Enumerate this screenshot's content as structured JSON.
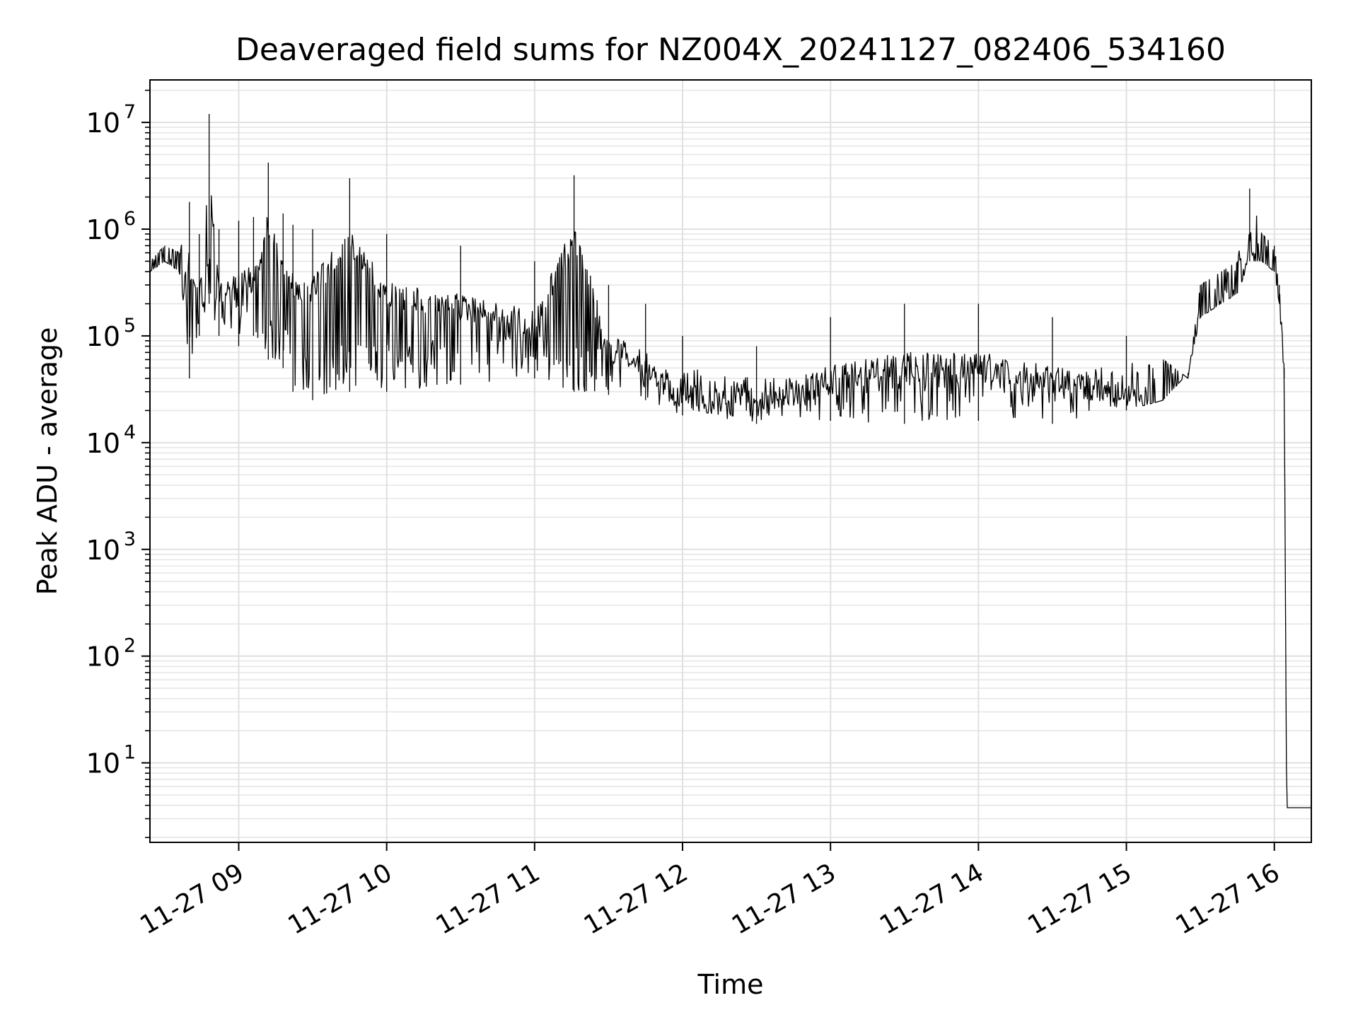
{
  "chart_data": {
    "type": "line",
    "title": "Deaveraged field sums for NZ004X_20241127_082406_534160",
    "xlabel": "Time",
    "ylabel": "Peak ADU - average",
    "yscale": "log",
    "ylim": [
      1.8,
      25000000
    ],
    "xlim": [
      "2024-11-27 08:24",
      "2024-11-27 16:15"
    ],
    "grid": true,
    "line_color": "#000000",
    "x_ticks": [
      {
        "value": "2024-11-27 09:00",
        "label": "11-27 09"
      },
      {
        "value": "2024-11-27 10:00",
        "label": "11-27 10"
      },
      {
        "value": "2024-11-27 11:00",
        "label": "11-27 11"
      },
      {
        "value": "2024-11-27 12:00",
        "label": "11-27 12"
      },
      {
        "value": "2024-11-27 13:00",
        "label": "11-27 13"
      },
      {
        "value": "2024-11-27 14:00",
        "label": "11-27 14"
      },
      {
        "value": "2024-11-27 15:00",
        "label": "11-27 15"
      },
      {
        "value": "2024-11-27 16:00",
        "label": "11-27 16"
      }
    ],
    "y_ticks": [
      {
        "value": 10,
        "base": "10",
        "exp": "1"
      },
      {
        "value": 100,
        "base": "10",
        "exp": "2"
      },
      {
        "value": 1000,
        "base": "10",
        "exp": "3"
      },
      {
        "value": 10000,
        "base": "10",
        "exp": "4"
      },
      {
        "value": 100000,
        "base": "10",
        "exp": "5"
      },
      {
        "value": 1000000,
        "base": "10",
        "exp": "6"
      },
      {
        "value": 10000000,
        "base": "10",
        "exp": "7"
      }
    ],
    "series": [
      {
        "x": [
          "2024-11-27 08:24",
          "2024-11-27 08:30",
          "2024-11-27 08:36",
          "2024-11-27 08:40",
          "2024-11-27 08:44",
          "2024-11-27 08:48",
          "2024-11-27 08:52",
          "2024-11-27 09:00",
          "2024-11-27 09:06",
          "2024-11-27 09:12",
          "2024-11-27 09:18",
          "2024-11-27 09:22",
          "2024-11-27 09:30",
          "2024-11-27 09:45",
          "2024-11-27 10:00",
          "2024-11-27 10:30",
          "2024-11-27 11:00",
          "2024-11-27 11:16",
          "2024-11-27 11:30",
          "2024-11-27 11:45",
          "2024-11-27 12:00",
          "2024-11-27 12:30",
          "2024-11-27 13:00",
          "2024-11-27 13:30",
          "2024-11-27 14:00",
          "2024-11-27 14:30",
          "2024-11-27 15:00",
          "2024-11-27 15:15",
          "2024-11-27 15:25",
          "2024-11-27 15:30",
          "2024-11-27 15:45",
          "2024-11-27 15:50",
          "2024-11-27 15:55",
          "2024-11-27 16:00",
          "2024-11-27 16:02",
          "2024-11-27 16:04",
          "2024-11-27 16:05",
          "2024-11-27 16:15"
        ],
        "y": [
          500000,
          700000,
          600000,
          1800000,
          900000,
          12000000,
          1000000,
          1200000,
          1300000,
          4200000,
          1400000,
          1100000,
          1000000,
          3000000,
          900000,
          700000,
          500000,
          3200000,
          300000,
          200000,
          100000,
          80000,
          150000,
          200000,
          200000,
          150000,
          100000,
          60000,
          40000,
          300000,
          500000,
          2400000,
          900000,
          700000,
          300000,
          50000,
          3.8,
          3.8
        ],
        "y_low": [
          400000,
          500000,
          400000,
          40000,
          100000,
          200000,
          100000,
          80000,
          100000,
          60000,
          50000,
          30000,
          25000,
          30000,
          30000,
          35000,
          40000,
          30000,
          28000,
          25000,
          18000,
          15000,
          16000,
          15000,
          16000,
          15000,
          20000,
          25000,
          45000,
          150000,
          250000,
          500000,
          500000,
          400000,
          200000,
          40000,
          3.8,
          3.8
        ]
      }
    ]
  }
}
